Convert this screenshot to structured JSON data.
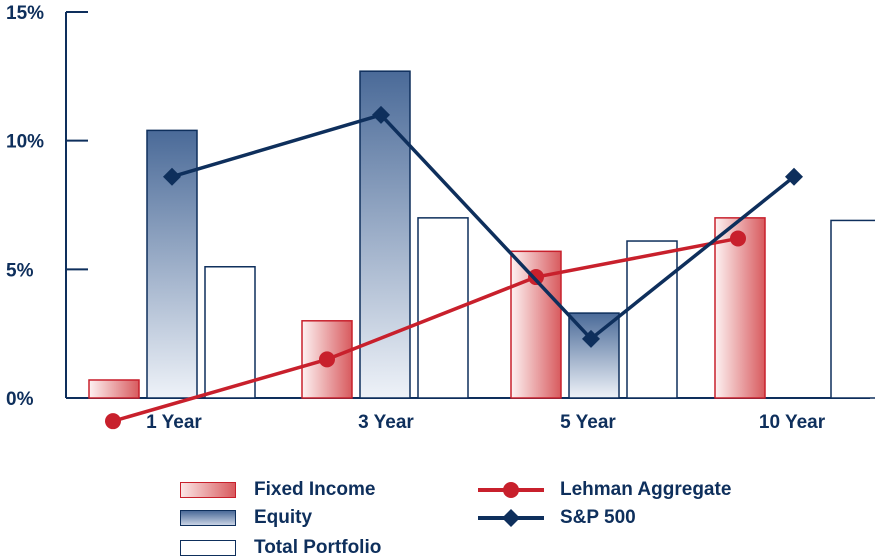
{
  "colors": {
    "axis": "#0e2f5c",
    "fixed_income_border": "#c8202c",
    "fixed_income_fill_light": "#fbe6e6",
    "fixed_income_fill_dark": "#d85a5e",
    "equity_border": "#0e2f5c",
    "equity_fill_top": "#4a6a98",
    "equity_fill_bottom": "#e6ebf3",
    "lehman_line": "#c8202c",
    "sp500_line": "#0e2f5c"
  },
  "chart_data": {
    "type": "bar",
    "categories": [
      "1 Year",
      "3 Year",
      "5 Year",
      "10 Year"
    ],
    "y_ticks": [
      "0%",
      "5%",
      "10%",
      "15%"
    ],
    "ylim": [
      0,
      15
    ],
    "grid": false,
    "legend_position": "bottom",
    "series": [
      {
        "name": "Fixed Income",
        "kind": "bar",
        "values": [
          0.7,
          3.0,
          5.7,
          7.0
        ]
      },
      {
        "name": "Equity",
        "kind": "bar",
        "values": [
          10.4,
          12.7,
          3.3,
          null
        ]
      },
      {
        "name": "Total Portfolio",
        "kind": "bar",
        "values": [
          5.1,
          7.0,
          6.1,
          6.9
        ]
      },
      {
        "name": "Lehman Aggregate",
        "kind": "line",
        "marker": "circle",
        "values": [
          -0.9,
          1.5,
          4.7,
          6.2
        ]
      },
      {
        "name": "S&P 500",
        "kind": "line",
        "marker": "diamond",
        "values": [
          8.6,
          11.0,
          2.3,
          8.6
        ]
      }
    ]
  },
  "legend": {
    "fixed_income": "Fixed Income",
    "equity": "Equity",
    "total_portfolio": "Total Portfolio",
    "lehman": "Lehman Aggregate",
    "sp500": "S&P 500"
  }
}
